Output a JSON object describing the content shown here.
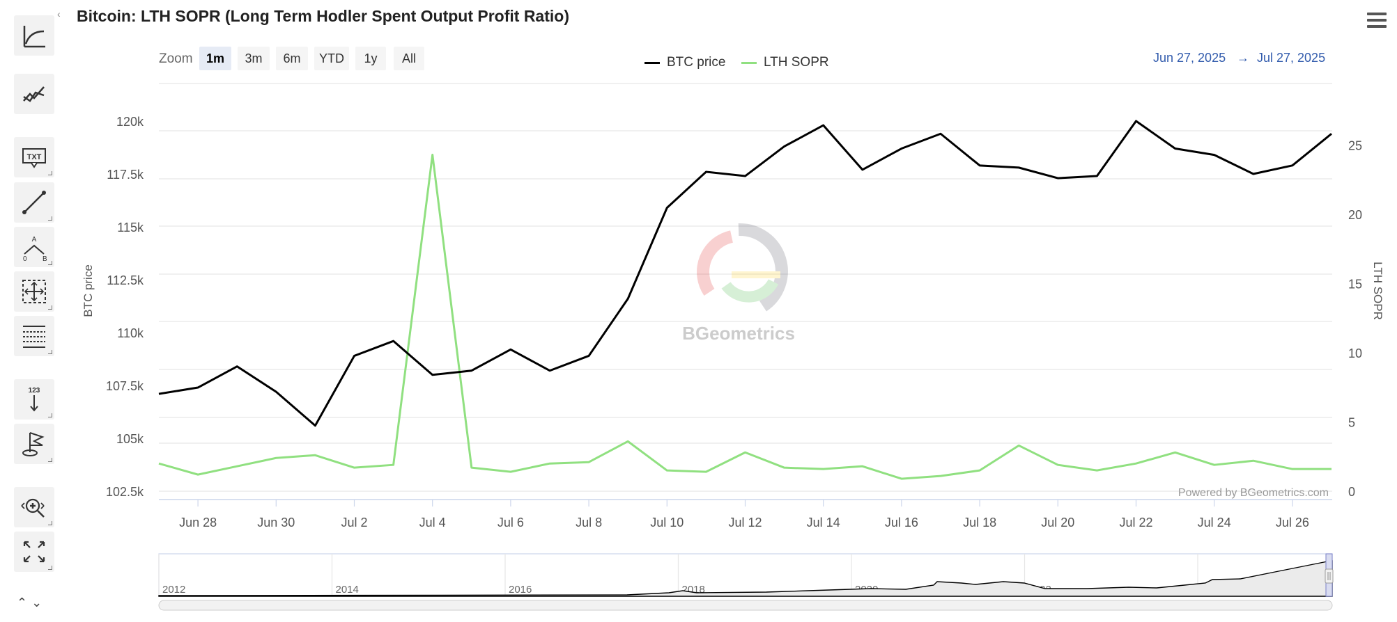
{
  "title": "Bitcoin: LTH SOPR (Long Term Hodler Spent Output Profit Ratio)",
  "toolbar": {
    "tools": [
      {
        "name": "indicators-icon"
      },
      {
        "name": "comparison-icon"
      },
      {
        "name": "text-label-icon",
        "text": "TXT"
      },
      {
        "name": "line-segment-icon"
      },
      {
        "name": "elliott-wave-icon",
        "text": "A",
        "text2": "0",
        "text3": "B"
      },
      {
        "name": "measure-icon"
      },
      {
        "name": "fibonacci-icon"
      },
      {
        "name": "vertical-counter-icon",
        "text": "123"
      },
      {
        "name": "flag-icon"
      },
      {
        "name": "zoom-change-icon"
      },
      {
        "name": "fullscreen-icon"
      }
    ]
  },
  "zoom": {
    "label": "Zoom",
    "buttons": [
      {
        "label": "1m",
        "selected": true
      },
      {
        "label": "3m",
        "selected": false
      },
      {
        "label": "6m",
        "selected": false
      },
      {
        "label": "YTD",
        "selected": false
      },
      {
        "label": "1y",
        "selected": false
      },
      {
        "label": "All",
        "selected": false
      }
    ]
  },
  "date_range": {
    "from": "Jun 27, 2025",
    "arrow": "→",
    "to": "Jul 27, 2025"
  },
  "credit": "Powered by BGeometrics.com",
  "watermark": "BGeometrics",
  "colors": {
    "btc": "#000000",
    "sopr": "#90e080",
    "range_text": "#335cad",
    "grid": "#e6e6e6"
  },
  "chart_data": {
    "type": "line",
    "x": [
      "Jun 27",
      "Jun 28",
      "Jun 29",
      "Jun 30",
      "Jul 1",
      "Jul 2",
      "Jul 3",
      "Jul 4",
      "Jul 5",
      "Jul 6",
      "Jul 7",
      "Jul 8",
      "Jul 9",
      "Jul 10",
      "Jul 11",
      "Jul 12",
      "Jul 13",
      "Jul 14",
      "Jul 15",
      "Jul 16",
      "Jul 17",
      "Jul 18",
      "Jul 19",
      "Jul 20",
      "Jul 21",
      "Jul 22",
      "Jul 23",
      "Jul 24",
      "Jul 25",
      "Jul 26",
      "Jul 27"
    ],
    "x_tick_labels": [
      "Jun 28",
      "Jun 30",
      "Jul 2",
      "Jul 4",
      "Jul 6",
      "Jul 8",
      "Jul 10",
      "Jul 12",
      "Jul 14",
      "Jul 16",
      "Jul 18",
      "Jul 20",
      "Jul 22",
      "Jul 24",
      "Jul 26"
    ],
    "series": [
      {
        "name": "BTC price",
        "axis": "left",
        "color": "#000000",
        "values": [
          107100,
          107400,
          108400,
          107200,
          105600,
          108900,
          109600,
          108000,
          108200,
          109200,
          108200,
          108900,
          111600,
          115900,
          117600,
          117400,
          118800,
          119800,
          117700,
          118700,
          119400,
          117900,
          117800,
          117300,
          117400,
          120000,
          118700,
          118400,
          117500,
          117900,
          119400
        ]
      },
      {
        "name": "LTH SOPR",
        "axis": "right",
        "color": "#90e080",
        "values": [
          2.0,
          1.2,
          1.8,
          2.4,
          2.6,
          1.7,
          1.9,
          24.3,
          1.7,
          1.4,
          2.0,
          2.1,
          3.6,
          1.5,
          1.4,
          2.8,
          1.7,
          1.6,
          1.8,
          0.9,
          1.1,
          1.5,
          3.3,
          1.9,
          1.5,
          2.0,
          2.8,
          1.9,
          2.2,
          1.6,
          1.6
        ]
      }
    ],
    "y_left": {
      "label": "BTC price",
      "ticks": [
        "102.5k",
        "105k",
        "107.5k",
        "110k",
        "112.5k",
        "115k",
        "117.5k",
        "120k"
      ],
      "ylim": [
        102500,
        122500
      ]
    },
    "y_right": {
      "label": "LTH SOPR",
      "ticks": [
        "0",
        "5",
        "10",
        "15",
        "20",
        "25"
      ],
      "ylim": [
        0,
        30
      ]
    },
    "grid": true,
    "legend": "top-center"
  },
  "navigator": {
    "years": [
      "2012",
      "2014",
      "2016",
      "2018",
      "2020",
      "2022",
      "2024"
    ]
  }
}
